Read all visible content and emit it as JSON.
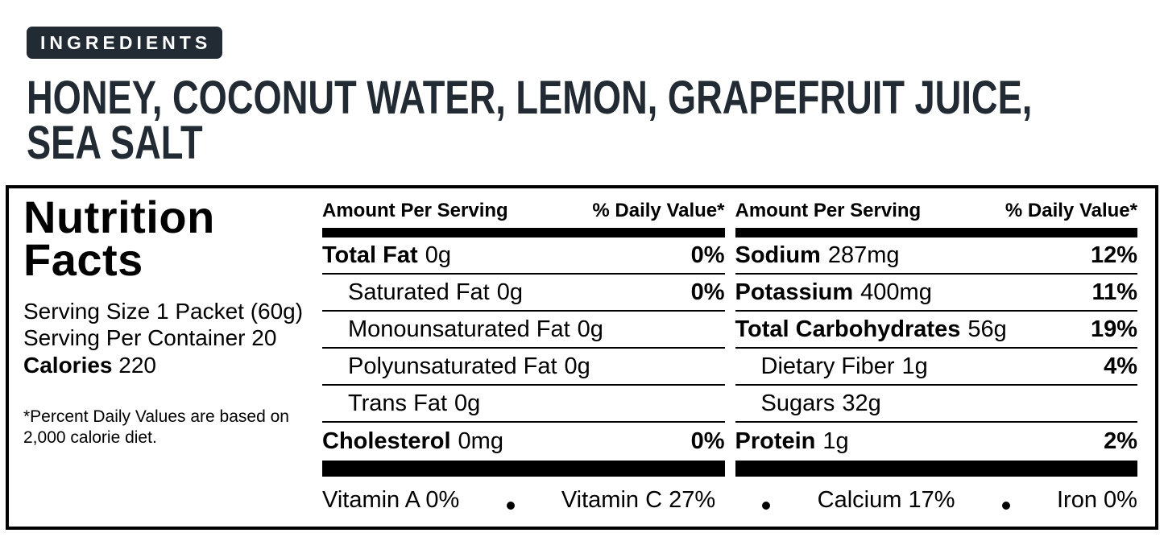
{
  "ingredients": {
    "badge": "INGREDIENTS",
    "line1": "HONEY, COCONUT WATER, LEMON, GRAPEFRUIT JUICE,",
    "line2": "SEA SALT"
  },
  "panel": {
    "title_line1": "Nutrition",
    "title_line2": "Facts",
    "serving_size": "Serving Size 1 Packet (60g)",
    "servings_per_container": "Serving Per Container 20",
    "calories_label": "Calories",
    "calories_value": "220",
    "footnote_line1": "*Percent Daily Values are based on",
    "footnote_line2": "2,000 calorie diet.",
    "columns": [
      {
        "header_left": "Amount Per Serving",
        "header_right": "% Daily Value*",
        "rows": [
          {
            "name": "Total Fat",
            "amount": "0g",
            "dv": "0%"
          },
          {
            "name": "Saturated Fat",
            "amount": "0g",
            "dv": "0%"
          },
          {
            "name": "Monounsaturated Fat",
            "amount": "0g",
            "dv": ""
          },
          {
            "name": "Polyunsaturated Fat",
            "amount": "0g",
            "dv": ""
          },
          {
            "name": "Trans Fat",
            "amount": "0g",
            "dv": ""
          },
          {
            "name": "Cholesterol",
            "amount": "0mg",
            "dv": "0%"
          }
        ]
      },
      {
        "header_left": "Amount Per Serving",
        "header_right": "% Daily Value*",
        "rows": [
          {
            "name": "Sodium",
            "amount": "287mg",
            "dv": "12%"
          },
          {
            "name": "Potassium",
            "amount": "400mg",
            "dv": "11%"
          },
          {
            "name": "Total Carbohydrates",
            "amount": "56g",
            "dv": "19%"
          },
          {
            "name": "Dietary Fiber",
            "amount": "1g",
            "dv": "4%"
          },
          {
            "name": "Sugars",
            "amount": "32g",
            "dv": ""
          },
          {
            "name": "Protein",
            "amount": "1g",
            "dv": "2%"
          }
        ]
      }
    ],
    "micronutrients": [
      "Vitamin A 0%",
      "Vitamin C 27%",
      "Calcium 17%",
      "Iron 0%"
    ]
  },
  "colors": {
    "accent": "#222b34",
    "ink": "#000000",
    "background": "#ffffff"
  }
}
